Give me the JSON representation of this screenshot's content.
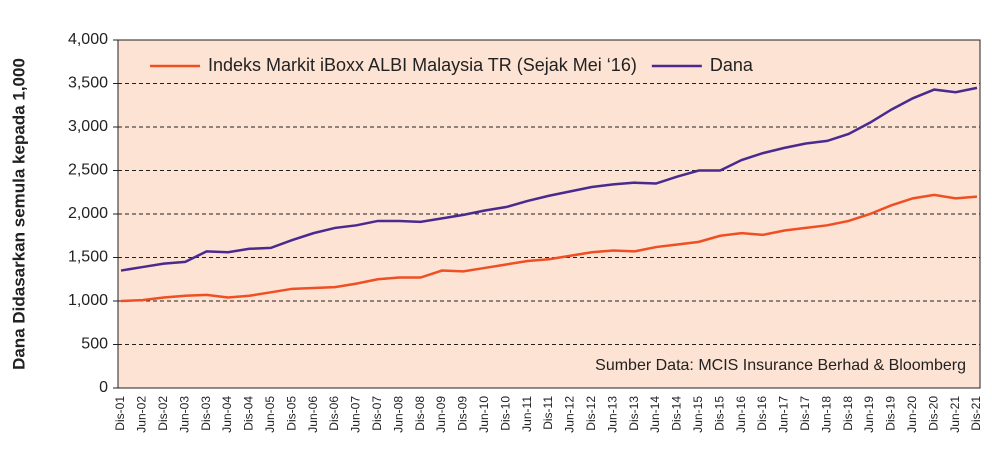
{
  "chart_data": {
    "type": "line",
    "y_label": "Dana Didasarkan semula kepada 1,000",
    "annotation": "Sumber Data: MCIS Insurance Berhad & Bloomberg",
    "categories": [
      "Dis-01",
      "Jun-02",
      "Dis-02",
      "Jun-03",
      "Dis-03",
      "Jun-04",
      "Dis-04",
      "Jun-05",
      "Dis-05",
      "Jun-06",
      "Dis-06",
      "Jun-07",
      "Dis-07",
      "Jun-08",
      "Dis-08",
      "Jun-09",
      "Dis-09",
      "Jun-10",
      "Dis-10",
      "Jun-11",
      "Dis-11",
      "Jun-12",
      "Dis-12",
      "Jun-13",
      "Dis-13",
      "Jun-14",
      "Dis-14",
      "Jun-15",
      "Dis-15",
      "Jun-16",
      "Dis-16",
      "Jun-17",
      "Dis-17",
      "Jun-18",
      "Dis-18",
      "Jun-19",
      "Dis-19",
      "Jun-20",
      "Dis-20",
      "Jun-21",
      "Dis-21"
    ],
    "series": [
      {
        "name": "Indeks Markit iBoxx ALBI Malaysia TR (Sejak Mei ‘16)",
        "color": "#f04e23",
        "values": [
          1000,
          1010,
          1040,
          1060,
          1070,
          1040,
          1060,
          1100,
          1140,
          1150,
          1160,
          1200,
          1250,
          1270,
          1270,
          1350,
          1340,
          1380,
          1420,
          1460,
          1480,
          1520,
          1560,
          1580,
          1570,
          1620,
          1650,
          1680,
          1750,
          1780,
          1760,
          1810,
          1840,
          1870,
          1920,
          2000,
          2100,
          2180,
          2220,
          2180,
          2200
        ]
      },
      {
        "name": "Dana",
        "color": "#4b2a8f",
        "values": [
          1350,
          1390,
          1430,
          1450,
          1570,
          1560,
          1600,
          1610,
          1700,
          1780,
          1840,
          1870,
          1920,
          1920,
          1910,
          1950,
          1990,
          2040,
          2080,
          2150,
          2210,
          2260,
          2310,
          2340,
          2360,
          2350,
          2430,
          2500,
          2500,
          2620,
          2700,
          2760,
          2810,
          2840,
          2920,
          3050,
          3200,
          3330,
          3430,
          3400,
          3450
        ]
      }
    ],
    "ylim": [
      0,
      4000
    ],
    "yticks": [
      0,
      500,
      {
        "value": 1000,
        "label": "1,000"
      },
      {
        "value": 1500,
        "label": "1,500"
      },
      {
        "value": 2000,
        "label": "2,000"
      },
      {
        "value": 2500,
        "label": "2,500"
      },
      {
        "value": 3000,
        "label": "3,000"
      },
      {
        "value": 3500,
        "label": "3,500"
      },
      {
        "value": 4000,
        "label": "4,000"
      }
    ],
    "grid": true,
    "legend": "top"
  }
}
